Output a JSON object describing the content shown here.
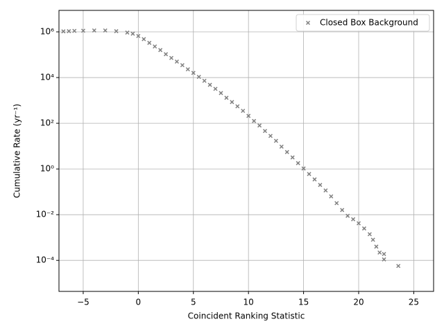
{
  "chart_data": {
    "type": "scatter",
    "xlabel": "Coincident Ranking Statistic",
    "ylabel": "Cumulative Rate (yr⁻¹)",
    "log_y": true,
    "grid": true,
    "legend": "upper right",
    "xlim": [
      -7.2,
      26.8
    ],
    "ylim": [
      4.4e-06,
      8700000.0
    ],
    "xticks": [
      {
        "value": -5,
        "label": "−5"
      },
      0,
      5,
      10,
      15,
      20,
      25
    ],
    "yticks": [
      {
        "value": 0.0001,
        "label": "10⁻⁴"
      },
      {
        "value": 0.01,
        "label": "10⁻²"
      },
      {
        "value": 1,
        "label": "10⁰"
      },
      {
        "value": 100,
        "label": "10²"
      },
      {
        "value": 10000,
        "label": "10⁴"
      },
      {
        "value": 1000000,
        "label": "10⁶"
      }
    ],
    "series": [
      {
        "name": "Closed Box Background",
        "color": "#808080",
        "x": [
          -6.8,
          -6.3,
          -5.8,
          -5.0,
          -4.0,
          -3.0,
          -2.0,
          -1.0,
          -0.5,
          0,
          0.5,
          1.0,
          1.5,
          2.0,
          2.5,
          3.0,
          3.5,
          4.0,
          4.5,
          5.0,
          5.5,
          6.0,
          6.5,
          7.0,
          7.5,
          8.0,
          8.5,
          9.0,
          9.5,
          10.0,
          10.5,
          11.0,
          11.5,
          12.0,
          12.5,
          13.0,
          13.5,
          14.0,
          14.5,
          15.0,
          15.5,
          16.0,
          16.5,
          17.0,
          17.5,
          18.0,
          18.5,
          19.0,
          19.5,
          20.0,
          20.5,
          21.0,
          21.3,
          21.6,
          21.9,
          22.3,
          22.3,
          23.6
        ],
        "values": [
          1050000,
          1070000,
          1100000,
          1120000,
          1150000,
          1150000,
          1070000,
          930000,
          830000,
          660000,
          480000,
          330000,
          230000,
          160000,
          105000,
          72000,
          50000,
          35000,
          23000,
          16000,
          10700,
          7200,
          4800,
          3200,
          2100,
          1300,
          850,
          550,
          350,
          210,
          126,
          80,
          46,
          28,
          17,
          9.5,
          5.5,
          3.2,
          1.8,
          1.05,
          0.6,
          0.35,
          0.2,
          0.115,
          0.063,
          0.032,
          0.016,
          0.0089,
          0.0063,
          0.0042,
          0.0025,
          0.0014,
          0.0008,
          0.0004,
          0.00022,
          0.00019,
          0.00011,
          5.7e-05
        ]
      }
    ]
  }
}
